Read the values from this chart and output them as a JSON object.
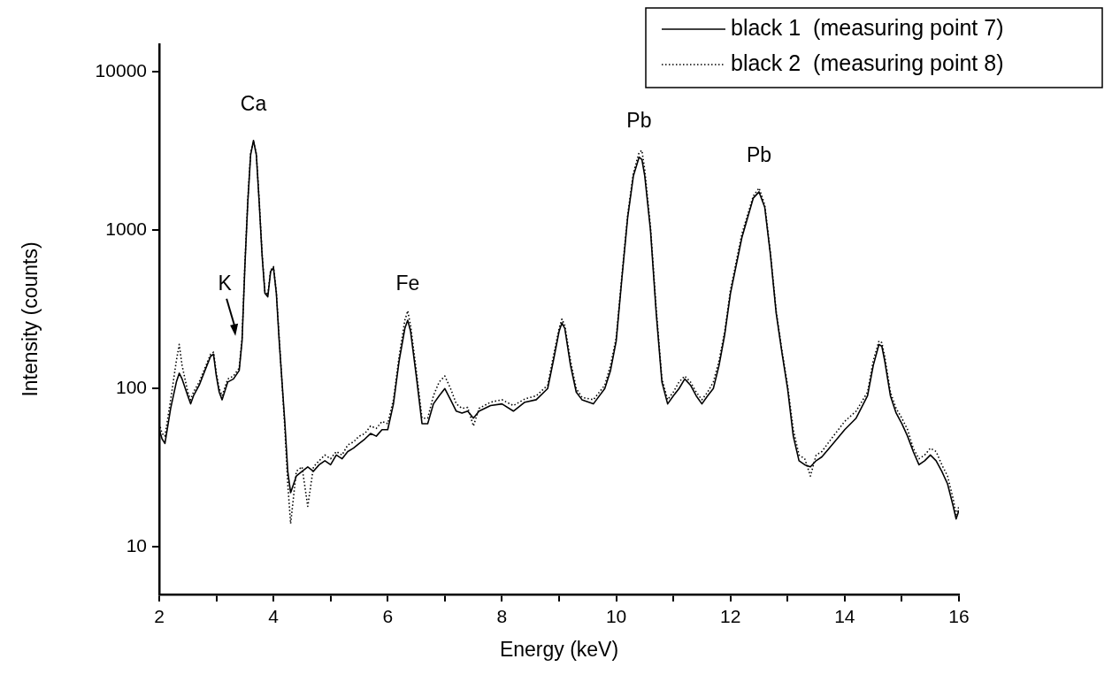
{
  "chart_data": {
    "type": "line",
    "xlabel": "Energy (keV)",
    "ylabel": "Intensity (counts)",
    "log": "y",
    "grid": false,
    "legend": "top right",
    "marker": "none",
    "xlim": [
      2,
      16
    ],
    "xticks": [
      2,
      {
        "value": 3,
        "label": null
      },
      4,
      {
        "value": 5,
        "label": null
      },
      6,
      {
        "value": 7,
        "label": null
      },
      8,
      {
        "value": 9,
        "label": null
      },
      10,
      {
        "value": 11,
        "label": null
      },
      12,
      {
        "value": 13,
        "label": null
      },
      14,
      {
        "value": 15,
        "label": null
      },
      16
    ],
    "ylim": [
      5,
      15000
    ],
    "yticks": [
      10,
      100,
      1000,
      10000
    ],
    "annotations": [
      "K",
      {
        "text": "Ca",
        "x": 3.65,
        "y": 3700
      },
      {
        "text": "Fe",
        "x": 6.35,
        "y": 270
      },
      {
        "text": "Pb",
        "x": 10.4,
        "y": 2900
      },
      {
        "text": "Pb",
        "x": 12.5,
        "y": 1750
      }
    ],
    "x": [
      2.0,
      2.05,
      2.1,
      2.2,
      2.3,
      2.35,
      2.4,
      2.5,
      2.55,
      2.6,
      2.7,
      2.8,
      2.9,
      2.95,
      3.0,
      3.05,
      3.1,
      3.2,
      3.3,
      3.4,
      3.45,
      3.5,
      3.55,
      3.6,
      3.65,
      3.7,
      3.75,
      3.8,
      3.85,
      3.9,
      3.95,
      4.0,
      4.05,
      4.1,
      4.2,
      4.25,
      4.3,
      4.4,
      4.5,
      4.6,
      4.7,
      4.8,
      4.9,
      5.0,
      5.1,
      5.2,
      5.3,
      5.4,
      5.5,
      5.6,
      5.7,
      5.8,
      5.9,
      6.0,
      6.1,
      6.2,
      6.3,
      6.35,
      6.4,
      6.5,
      6.6,
      6.7,
      6.8,
      6.9,
      7.0,
      7.1,
      7.2,
      7.3,
      7.4,
      7.5,
      7.6,
      7.8,
      8.0,
      8.2,
      8.4,
      8.6,
      8.8,
      8.9,
      9.0,
      9.05,
      9.1,
      9.2,
      9.3,
      9.4,
      9.6,
      9.8,
      9.9,
      10.0,
      10.1,
      10.2,
      10.3,
      10.4,
      10.45,
      10.5,
      10.6,
      10.7,
      10.8,
      10.9,
      11.0,
      11.1,
      11.2,
      11.3,
      11.4,
      11.5,
      11.6,
      11.7,
      11.8,
      11.9,
      12.0,
      12.2,
      12.4,
      12.5,
      12.6,
      12.7,
      12.8,
      12.9,
      13.0,
      13.1,
      13.2,
      13.3,
      13.4,
      13.5,
      13.6,
      13.8,
      14.0,
      14.2,
      14.4,
      14.5,
      14.6,
      14.65,
      14.7,
      14.8,
      14.9,
      15.0,
      15.1,
      15.2,
      15.3,
      15.4,
      15.5,
      15.6,
      15.7,
      15.8,
      15.9,
      15.95,
      16.0
    ],
    "series": [
      {
        "name": "black 1  (measuring point 7)",
        "color": "#000000",
        "line_style": "solid",
        "values": [
          55,
          48,
          45,
          75,
          110,
          125,
          115,
          90,
          80,
          90,
          105,
          130,
          160,
          165,
          120,
          95,
          85,
          110,
          115,
          130,
          200,
          600,
          1500,
          3000,
          3700,
          3000,
          1500,
          700,
          400,
          380,
          550,
          580,
          400,
          200,
          60,
          30,
          22,
          28,
          30,
          32,
          30,
          33,
          35,
          33,
          38,
          36,
          40,
          42,
          45,
          48,
          52,
          50,
          55,
          55,
          80,
          150,
          240,
          270,
          230,
          120,
          60,
          60,
          80,
          90,
          100,
          85,
          72,
          70,
          72,
          65,
          72,
          78,
          80,
          72,
          82,
          85,
          100,
          150,
          230,
          260,
          240,
          140,
          95,
          85,
          80,
          100,
          130,
          200,
          500,
          1200,
          2200,
          2900,
          2800,
          2200,
          1000,
          300,
          110,
          80,
          90,
          100,
          115,
          105,
          90,
          80,
          90,
          100,
          140,
          220,
          400,
          900,
          1600,
          1750,
          1400,
          700,
          300,
          170,
          100,
          50,
          35,
          33,
          32,
          35,
          37,
          45,
          55,
          65,
          90,
          140,
          190,
          185,
          150,
          90,
          70,
          60,
          50,
          40,
          33,
          35,
          38,
          35,
          30,
          25,
          18,
          15,
          17
        ]
      },
      {
        "name": "black 2  (measuring point 8)",
        "color": "#000000",
        "line_style": "dotted",
        "values": [
          60,
          52,
          50,
          85,
          150,
          190,
          140,
          95,
          85,
          95,
          110,
          135,
          165,
          170,
          125,
          100,
          90,
          115,
          120,
          135,
          210,
          620,
          1550,
          3100,
          3650,
          3050,
          1550,
          720,
          410,
          390,
          560,
          590,
          410,
          210,
          55,
          25,
          14,
          30,
          32,
          18,
          32,
          35,
          38,
          36,
          40,
          38,
          44,
          46,
          50,
          52,
          58,
          56,
          62,
          60,
          85,
          160,
          270,
          310,
          250,
          130,
          65,
          65,
          90,
          110,
          120,
          100,
          80,
          75,
          76,
          58,
          75,
          82,
          85,
          78,
          86,
          90,
          105,
          160,
          240,
          275,
          250,
          150,
          100,
          88,
          85,
          105,
          140,
          210,
          520,
          1250,
          2300,
          3100,
          3200,
          2400,
          1050,
          320,
          115,
          85,
          95,
          110,
          120,
          110,
          95,
          85,
          95,
          110,
          150,
          230,
          420,
          950,
          1650,
          1850,
          1450,
          720,
          310,
          175,
          105,
          55,
          38,
          36,
          28,
          38,
          40,
          50,
          62,
          72,
          95,
          150,
          200,
          195,
          160,
          95,
          75,
          65,
          55,
          42,
          36,
          38,
          42,
          40,
          33,
          28,
          20,
          16,
          18
        ]
      }
    ]
  }
}
